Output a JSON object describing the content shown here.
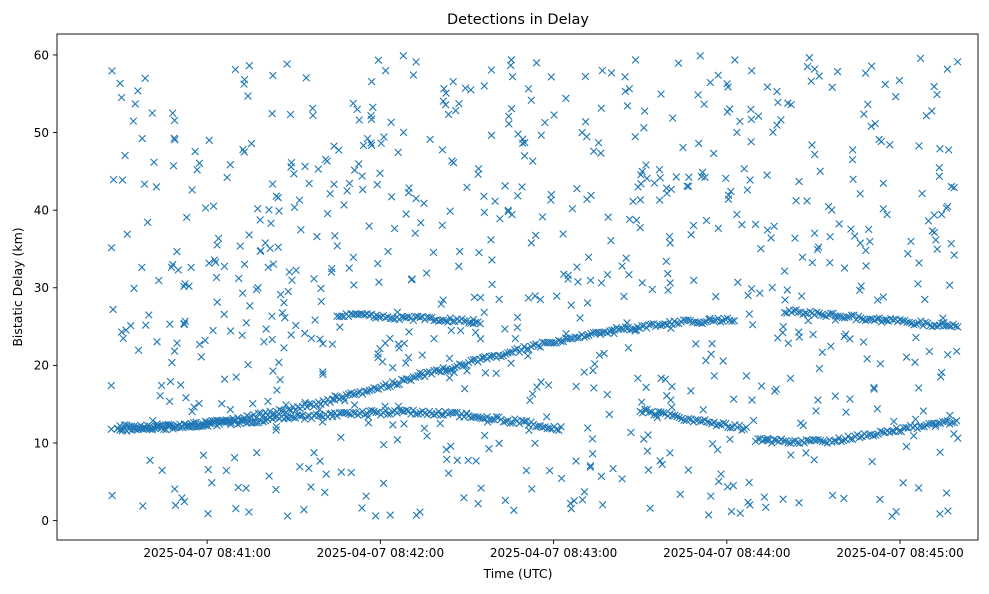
{
  "chart_data": {
    "type": "scatter",
    "title": "Detections in Delay",
    "xlabel": "Time (UTC)",
    "ylabel": "Bistatic Delay (km)",
    "x_unit": "time (UTC)",
    "xlim": [
      "2025-04-07 08:40:08",
      "2025-04-07 08:45:27"
    ],
    "ylim": [
      -2.5,
      62.7
    ],
    "x_ticks": [
      "2025-04-07 08:41:00",
      "2025-04-07 08:42:00",
      "2025-04-07 08:43:00",
      "2025-04-07 08:44:00",
      "2025-04-07 08:45:00"
    ],
    "y_ticks": [
      0,
      10,
      20,
      30,
      40,
      50,
      60
    ],
    "marker": "x",
    "color": "#1f77b4",
    "grid": false,
    "legend": "none",
    "tracks": [
      {
        "start": "2025-04-07 08:40:29",
        "end": "2025-04-07 08:44:03",
        "y_start": 11.8,
        "y_end": 25.8,
        "shape": "s-curve"
      },
      {
        "start": "2025-04-07 08:40:29",
        "end": "2025-04-07 08:43:03",
        "y_start": 12.0,
        "y_end": 11.8,
        "shape": "arch"
      },
      {
        "start": "2025-04-07 08:41:45",
        "end": "2025-04-07 08:42:35",
        "y_start": 26.6,
        "y_end": 25.6,
        "shape": "line"
      },
      {
        "start": "2025-04-07 08:43:30",
        "end": "2025-04-07 08:44:07",
        "y_start": 14.2,
        "y_end": 11.8,
        "shape": "line"
      },
      {
        "start": "2025-04-07 08:44:20",
        "end": "2025-04-07 08:45:20",
        "y_start": 27.0,
        "y_end": 25.0,
        "shape": "line"
      },
      {
        "start": "2025-04-07 08:44:10",
        "end": "2025-04-07 08:45:20",
        "y_start": 10.5,
        "y_end": 12.8,
        "shape": "dip"
      }
    ],
    "clutter_count": 820,
    "clutter_y_range": [
      0.5,
      60
    ]
  }
}
